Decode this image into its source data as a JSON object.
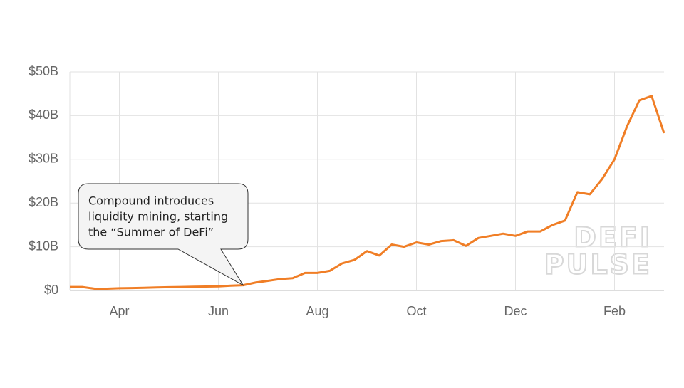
{
  "chart_data": {
    "type": "line",
    "categories": [
      null,
      null,
      null,
      null,
      "Apr",
      null,
      null,
      null,
      null,
      null,
      null,
      null,
      "Jun",
      null,
      null,
      null,
      null,
      null,
      null,
      null,
      "Aug",
      null,
      null,
      null,
      null,
      null,
      null,
      null,
      "Oct",
      null,
      null,
      null,
      null,
      null,
      null,
      null,
      "Dec",
      null,
      null,
      null,
      null,
      null,
      null,
      null,
      "Feb",
      null,
      null,
      null,
      null
    ],
    "series": [
      {
        "color": "#f07e26",
        "values": [
          0.8,
          0.8,
          0.4,
          0.4,
          0.5,
          0.55,
          0.6,
          0.7,
          0.75,
          0.8,
          0.85,
          0.9,
          0.95,
          1.1,
          1.2,
          1.8,
          2.2,
          2.6,
          2.8,
          4.0,
          4.0,
          4.5,
          6.2,
          7.0,
          9.0,
          8.0,
          10.5,
          10.0,
          11.0,
          10.5,
          11.3,
          11.5,
          10.2,
          12.0,
          12.5,
          13.0,
          12.5,
          13.5,
          13.5,
          15.0,
          16.0,
          22.5,
          22.0,
          25.5,
          30.0,
          37.5,
          43.5,
          44.5,
          36.0
        ]
      }
    ],
    "ylim": [
      0,
      50
    ],
    "yticks": [
      {
        "value": 0,
        "label": "$0"
      },
      {
        "value": 10,
        "label": "$10B"
      },
      {
        "value": 20,
        "label": "$20B"
      },
      {
        "value": 30,
        "label": "$30B"
      },
      {
        "value": 40,
        "label": "$40B"
      },
      {
        "value": 50,
        "label": "$50B"
      }
    ],
    "grid": true,
    "annotation": {
      "lines": [
        "Compound introduces",
        "liquidity mining, starting",
        "the “Summer of DeFi”"
      ],
      "index": 14
    },
    "watermark": [
      "DEFI",
      "PULSE"
    ]
  }
}
